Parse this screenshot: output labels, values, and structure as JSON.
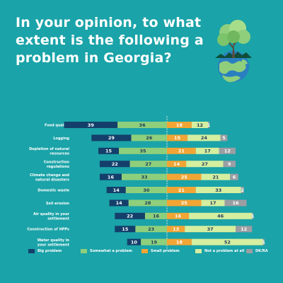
{
  "title": "In your opinion, to what extent is the following a problem in Georgia?",
  "colors": {
    "background": "#1aa3a8",
    "big_problem": "#143f6b",
    "somewhat_problem": "#8fcf7c",
    "small_problem": "#f2a534",
    "not_a_problem": "#d5eea0",
    "dk_ra": "#9b9ea3"
  },
  "chart_data": {
    "type": "bar",
    "orientation": "horizontal-diverging",
    "categories": [
      "Food quality",
      "Logging",
      "Depletion of natural resources",
      "Construction regulations",
      "Climate change and natural disasters",
      "Domestic waste",
      "Soil erosion",
      "Air quality in your settlement",
      "Construction of HPPs",
      "Water quality in your settlement"
    ],
    "series": [
      {
        "name": "Big problem",
        "side": "left",
        "values": [
          39,
          29,
          15,
          22,
          16,
          14,
          14,
          22,
          15,
          10
        ]
      },
      {
        "name": "Somewhat a problem",
        "side": "left",
        "values": [
          36,
          26,
          35,
          27,
          33,
          30,
          28,
          16,
          23,
          19
        ]
      },
      {
        "name": "Small problem",
        "side": "right",
        "values": [
          18,
          15,
          21,
          14,
          25,
          21,
          25,
          16,
          13,
          18
        ]
      },
      {
        "name": "Not a problem at all",
        "side": "right",
        "values": [
          12,
          24,
          17,
          27,
          21,
          33,
          17,
          46,
          37,
          52
        ]
      },
      {
        "name": "DK/RA",
        "side": "right",
        "values": [
          1,
          5,
          12,
          9,
          6,
          2,
          16,
          1,
          12,
          1
        ]
      }
    ],
    "legend_position": "bottom",
    "grid": false
  }
}
